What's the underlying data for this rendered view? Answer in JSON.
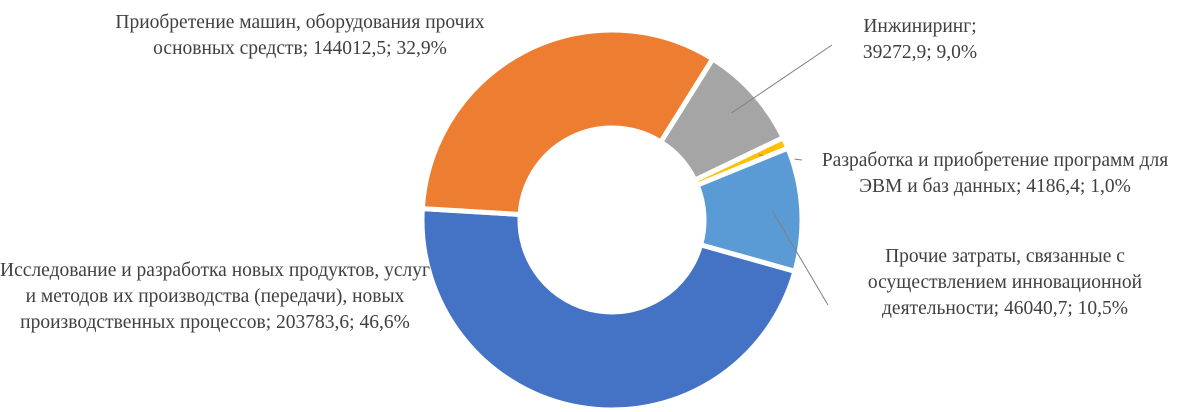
{
  "chart_data": {
    "type": "donut",
    "categories": [
      "Инжиниринг",
      "Разработка и приобретение программ для ЭВМ и баз данных",
      "Прочие затраты, связанные с осуществлением инновационной деятельности",
      "Исследование и разработка новых продуктов, услуг и методов их производства (передачи), новых производственных процессов",
      "Приобретение машин, оборудования прочих основных средств"
    ],
    "values": [
      39272.9,
      4186.4,
      46040.7,
      203783.6,
      144012.5
    ],
    "value_labels": [
      "39272,9",
      "4186,4",
      "46040,7",
      "203783,6",
      "144012,5"
    ],
    "percents": [
      9.0,
      1.0,
      10.5,
      46.6,
      32.9
    ],
    "percent_labels": [
      "9,0%",
      "1,0%",
      "10,5%",
      "46,6%",
      "32,9%"
    ],
    "separator": "; ",
    "colors": [
      "#a5a5a5",
      "#ffc000",
      "#5b9bd5",
      "#4472c4",
      "#ed7d31"
    ]
  }
}
